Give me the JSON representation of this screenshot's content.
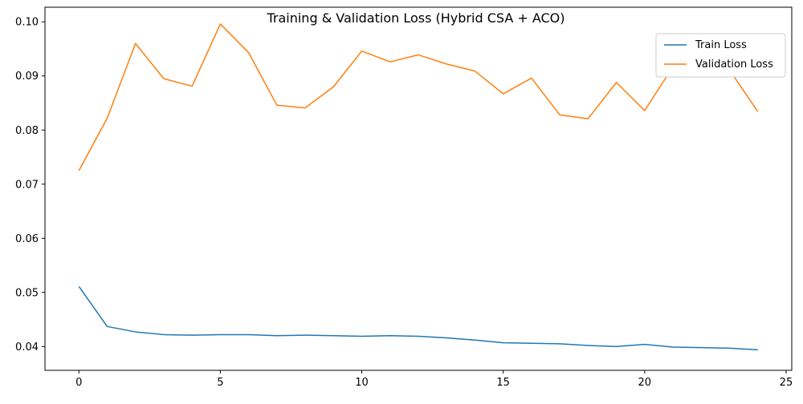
{
  "chart_data": {
    "type": "line",
    "title": "Training & Validation Loss (Hybrid CSA + ACO)",
    "xlabel": "",
    "ylabel": "",
    "xlim": [
      -1.2,
      25.2
    ],
    "ylim": [
      0.0356,
      0.1027
    ],
    "xticks": [
      0,
      5,
      10,
      15,
      20,
      25
    ],
    "yticks": [
      0.04,
      0.05,
      0.06,
      0.07,
      0.08,
      0.09,
      0.1
    ],
    "ytick_labels": [
      "0.04",
      "0.05",
      "0.06",
      "0.07",
      "0.08",
      "0.09",
      "0.10"
    ],
    "grid": false,
    "legend_position": "upper right",
    "x": [
      0,
      1,
      2,
      3,
      4,
      5,
      6,
      7,
      8,
      9,
      10,
      11,
      12,
      13,
      14,
      15,
      16,
      17,
      18,
      19,
      20,
      21,
      22,
      23,
      24
    ],
    "series": [
      {
        "name": "Train Loss",
        "color": "#1f77b4",
        "values": [
          0.0511,
          0.0437,
          0.0427,
          0.0422,
          0.0421,
          0.0422,
          0.0422,
          0.042,
          0.0421,
          0.042,
          0.0419,
          0.042,
          0.0419,
          0.0416,
          0.0412,
          0.0407,
          0.0406,
          0.0405,
          0.0402,
          0.04,
          0.0404,
          0.0399,
          0.0398,
          0.0397,
          0.0394
        ]
      },
      {
        "name": "Validation Loss",
        "color": "#ff7f0e",
        "values": [
          0.0725,
          0.0822,
          0.096,
          0.0895,
          0.0881,
          0.0996,
          0.0943,
          0.0846,
          0.0841,
          0.088,
          0.0946,
          0.0926,
          0.0939,
          0.0922,
          0.0909,
          0.0867,
          0.0896,
          0.0828,
          0.0821,
          0.0888,
          0.0836,
          0.0917,
          0.0917,
          0.0911,
          0.0834
        ]
      }
    ]
  }
}
